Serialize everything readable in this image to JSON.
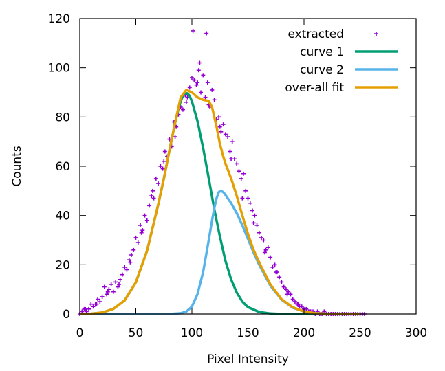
{
  "chart_data": {
    "type": "scatter",
    "title": "",
    "xlabel": "Pixel Intensity",
    "ylabel": "Counts",
    "xlim": [
      0,
      300
    ],
    "ylim": [
      0,
      120
    ],
    "xticks": [
      0,
      50,
      100,
      150,
      200,
      250,
      300
    ],
    "yticks": [
      0,
      20,
      40,
      60,
      80,
      100,
      120
    ],
    "xtick_labels": [
      "0",
      "50",
      "100",
      "150",
      "200",
      "250",
      "300"
    ],
    "ytick_labels": [
      "0",
      "20",
      "40",
      "60",
      "80",
      "100",
      "120"
    ],
    "grid": false,
    "legend_position": "top-right",
    "series": [
      {
        "name": "extracted",
        "kind": "points",
        "color": "#9400d3",
        "x": [
          0,
          2,
          4,
          6,
          8,
          10,
          12,
          14,
          16,
          18,
          20,
          22,
          24,
          26,
          28,
          30,
          32,
          34,
          36,
          38,
          40,
          42,
          44,
          46,
          48,
          50,
          52,
          54,
          56,
          58,
          60,
          62,
          64,
          66,
          68,
          70,
          72,
          74,
          76,
          78,
          80,
          82,
          84,
          86,
          88,
          90,
          92,
          94,
          96,
          98,
          100,
          102,
          104,
          106,
          108,
          110,
          112,
          114,
          116,
          118,
          120,
          122,
          124,
          126,
          128,
          130,
          132,
          134,
          136,
          138,
          140,
          142,
          144,
          146,
          148,
          150,
          152,
          154,
          156,
          158,
          160,
          162,
          164,
          166,
          168,
          170,
          172,
          174,
          176,
          178,
          180,
          182,
          184,
          186,
          188,
          190,
          192,
          194,
          196,
          198,
          200,
          202,
          204,
          206,
          208,
          210,
          212,
          214,
          216,
          218,
          220,
          222,
          224,
          226,
          228,
          230,
          232,
          234,
          236,
          238,
          240,
          242,
          244,
          246,
          248,
          250,
          252,
          254,
          5,
          15,
          25,
          35,
          45,
          55,
          65,
          75,
          85,
          95,
          105,
          115,
          125,
          135,
          145,
          155,
          165,
          175,
          185,
          195,
          205,
          101,
          107,
          113
        ],
        "y": [
          0,
          1,
          2,
          1,
          2,
          4,
          3,
          4,
          6,
          5,
          7,
          11,
          8,
          10,
          12,
          9,
          13,
          11,
          14,
          16,
          19,
          18,
          22,
          24,
          26,
          31,
          29,
          36,
          34,
          40,
          38,
          44,
          48,
          47,
          55,
          53,
          60,
          59,
          66,
          64,
          71,
          68,
          78,
          76,
          81,
          84,
          83,
          89,
          88,
          92,
          96,
          95,
          93,
          99,
          90,
          97,
          88,
          94,
          84,
          91,
          87,
          79,
          80,
          74,
          77,
          73,
          72,
          66,
          70,
          63,
          61,
          58,
          55,
          57,
          50,
          47,
          45,
          42,
          40,
          36,
          33,
          31,
          30,
          26,
          27,
          23,
          19,
          20,
          17,
          15,
          13,
          11,
          10,
          9,
          8,
          6,
          5,
          4,
          3,
          3,
          2,
          2,
          1,
          1,
          1,
          0,
          1,
          0,
          0,
          1,
          0,
          0,
          0,
          0,
          0,
          0,
          0,
          0,
          0,
          0,
          0,
          0,
          0,
          0,
          0,
          0,
          0,
          0,
          2,
          4,
          9,
          12,
          21,
          33,
          50,
          62,
          72,
          86,
          94,
          85,
          76,
          63,
          47,
          37,
          25,
          17,
          8,
          4,
          1,
          115,
          102,
          114
        ]
      },
      {
        "name": "curve 1",
        "kind": "line",
        "color": "#009e73",
        "x": [
          0,
          10,
          20,
          30,
          40,
          50,
          60,
          70,
          75,
          80,
          85,
          88,
          90,
          92,
          94,
          96,
          98,
          100,
          105,
          110,
          115,
          120,
          125,
          130,
          135,
          140,
          145,
          150,
          160,
          170,
          180,
          190,
          200,
          210,
          220,
          230,
          240,
          250
        ],
        "y": [
          0,
          0.1,
          0.6,
          2.1,
          5.5,
          12.8,
          25.7,
          44.5,
          55.1,
          66.5,
          77.6,
          83.2,
          86.4,
          88.6,
          89.8,
          89.6,
          88.6,
          86.4,
          78.4,
          67.5,
          55.1,
          42.5,
          31.4,
          21.5,
          14.0,
          8.7,
          5.0,
          2.8,
          0.8,
          0.2,
          0,
          0,
          0,
          0,
          0,
          0,
          0,
          0
        ]
      },
      {
        "name": "curve 2",
        "kind": "line",
        "color": "#56b4e9",
        "x": [
          0,
          50,
          80,
          90,
          95,
          100,
          105,
          110,
          115,
          118,
          120,
          122,
          124,
          126,
          128,
          130,
          135,
          140,
          145,
          150,
          155,
          160,
          170,
          180,
          190,
          200,
          210,
          220,
          250
        ],
        "y": [
          0,
          0,
          0,
          0.3,
          1.0,
          3.0,
          8.0,
          17.0,
          30.0,
          38.0,
          43.0,
          47.0,
          49.5,
          50.0,
          49.5,
          48.3,
          45.0,
          41.0,
          36.0,
          30.5,
          25.0,
          20.0,
          11.5,
          5.8,
          2.5,
          1.0,
          0.3,
          0.1,
          0
        ]
      },
      {
        "name": "over-all fit",
        "kind": "line",
        "color": "#e69f00",
        "x": [
          0,
          10,
          20,
          30,
          40,
          50,
          60,
          70,
          75,
          80,
          85,
          90,
          95,
          100,
          105,
          110,
          115,
          118,
          120,
          122,
          125,
          128,
          130,
          135,
          140,
          145,
          150,
          155,
          160,
          170,
          180,
          190,
          200,
          210,
          220,
          250
        ],
        "y": [
          0,
          0.1,
          0.6,
          2.1,
          5.5,
          12.8,
          25.7,
          44.5,
          55.1,
          66.5,
          77.6,
          88.0,
          91.0,
          90.0,
          88.0,
          87.0,
          86.5,
          84.0,
          80.0,
          76.0,
          69.0,
          64.0,
          61.0,
          55.0,
          48.0,
          40.0,
          32.5,
          26.0,
          21.0,
          12.0,
          6.0,
          2.7,
          1.0,
          0.3,
          0.1,
          0
        ]
      }
    ]
  }
}
